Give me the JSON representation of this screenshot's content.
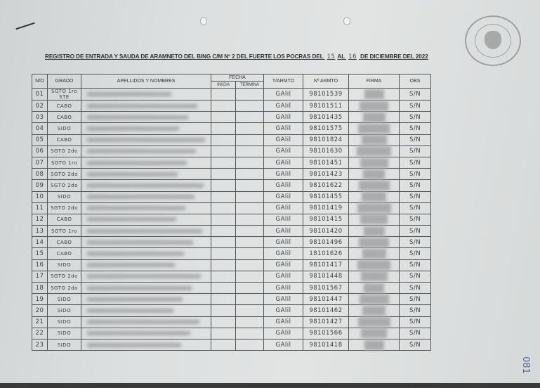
{
  "document": {
    "title_prefix": "REGISTRO DE ENTRADA Y SAUDA DE ARAMNETO DEL BING C/M Nº 2 DEL FUERTE LOS POCRAS DEL",
    "day_from": "15",
    "al": "AL",
    "day_to": "16",
    "title_suffix": "DE DICIEMBRE DEL 2022",
    "page_number": "081"
  },
  "table": {
    "headers": {
      "no": "N/O",
      "grado": "GRADO",
      "nombres": "APELLIDOS Y NOMBRES",
      "fecha": "FECHA",
      "inicia": "INICIA",
      "termina": "TERMINA",
      "tarmto": "T/ARMTO",
      "narmto": "Nº ARMTO",
      "firma": "FIRMA",
      "obs": "OBS"
    },
    "rows": [
      {
        "no": "01",
        "grado": "SGTO 1ro STE",
        "tipo": "GAlil",
        "numero": "98101539",
        "obs": "S/N"
      },
      {
        "no": "02",
        "grado": "CABO",
        "tipo": "GAlil",
        "numero": "98101511",
        "obs": "S/N"
      },
      {
        "no": "03",
        "grado": "CABO",
        "tipo": "GAlil",
        "numero": "98101435",
        "obs": "S/N"
      },
      {
        "no": "04",
        "grado": "SIDO",
        "tipo": "GAlil",
        "numero": "98101575",
        "obs": "S/N"
      },
      {
        "no": "05",
        "grado": "CABO",
        "tipo": "GAlil",
        "numero": "98101824",
        "obs": "S/N"
      },
      {
        "no": "06",
        "grado": "SGTO 2do",
        "tipo": "GAlil",
        "numero": "98101630",
        "obs": "S/N"
      },
      {
        "no": "07",
        "grado": "SGTO 1ro",
        "tipo": "GAlil",
        "numero": "98101451",
        "obs": "S/N"
      },
      {
        "no": "08",
        "grado": "SGTO 2do",
        "tipo": "GAlil",
        "numero": "98101423",
        "obs": "S/N"
      },
      {
        "no": "09",
        "grado": "SGTO 2do",
        "tipo": "GAlil",
        "numero": "98101622",
        "obs": "S/N"
      },
      {
        "no": "10",
        "grado": "SIDO",
        "tipo": "GAlil",
        "numero": "98101455",
        "obs": "S/N"
      },
      {
        "no": "11",
        "grado": "SGTO 2do",
        "tipo": "GAlil",
        "numero": "98101419",
        "obs": "S/N"
      },
      {
        "no": "12",
        "grado": "CABO",
        "tipo": "GAlil",
        "numero": "98101415",
        "obs": "S/N"
      },
      {
        "no": "13",
        "grado": "SGTO 1ro",
        "tipo": "GAlil",
        "numero": "98101420",
        "obs": "S/N"
      },
      {
        "no": "14",
        "grado": "CABO",
        "tipo": "GAlil",
        "numero": "98101496",
        "obs": "S/N"
      },
      {
        "no": "15",
        "grado": "CABO",
        "tipo": "GAlil",
        "numero": "18101626",
        "obs": "S/N"
      },
      {
        "no": "16",
        "grado": "SIDO",
        "tipo": "GAlil",
        "numero": "98101417",
        "obs": "S/N"
      },
      {
        "no": "17",
        "grado": "SGTO 2do",
        "tipo": "GAlil",
        "numero": "98101448",
        "obs": "S/N"
      },
      {
        "no": "18",
        "grado": "SGTO 2do",
        "tipo": "GAlil",
        "numero": "98101567",
        "obs": "S/N"
      },
      {
        "no": "19",
        "grado": "SIDO",
        "tipo": "GAlil",
        "numero": "98101447",
        "obs": "S/N"
      },
      {
        "no": "20",
        "grado": "SIDO",
        "tipo": "GAlil",
        "numero": "98101462",
        "obs": "S/N"
      },
      {
        "no": "21",
        "grado": "SIDO",
        "tipo": "GAlil",
        "numero": "98101427",
        "obs": "S/N"
      },
      {
        "no": "22",
        "grado": "SIDO",
        "tipo": "GAlil",
        "numero": "98101566",
        "obs": "S/N"
      },
      {
        "no": "23",
        "grado": "SIDO",
        "tipo": "GAlil",
        "numero": "98101418",
        "obs": "S/N"
      }
    ]
  }
}
